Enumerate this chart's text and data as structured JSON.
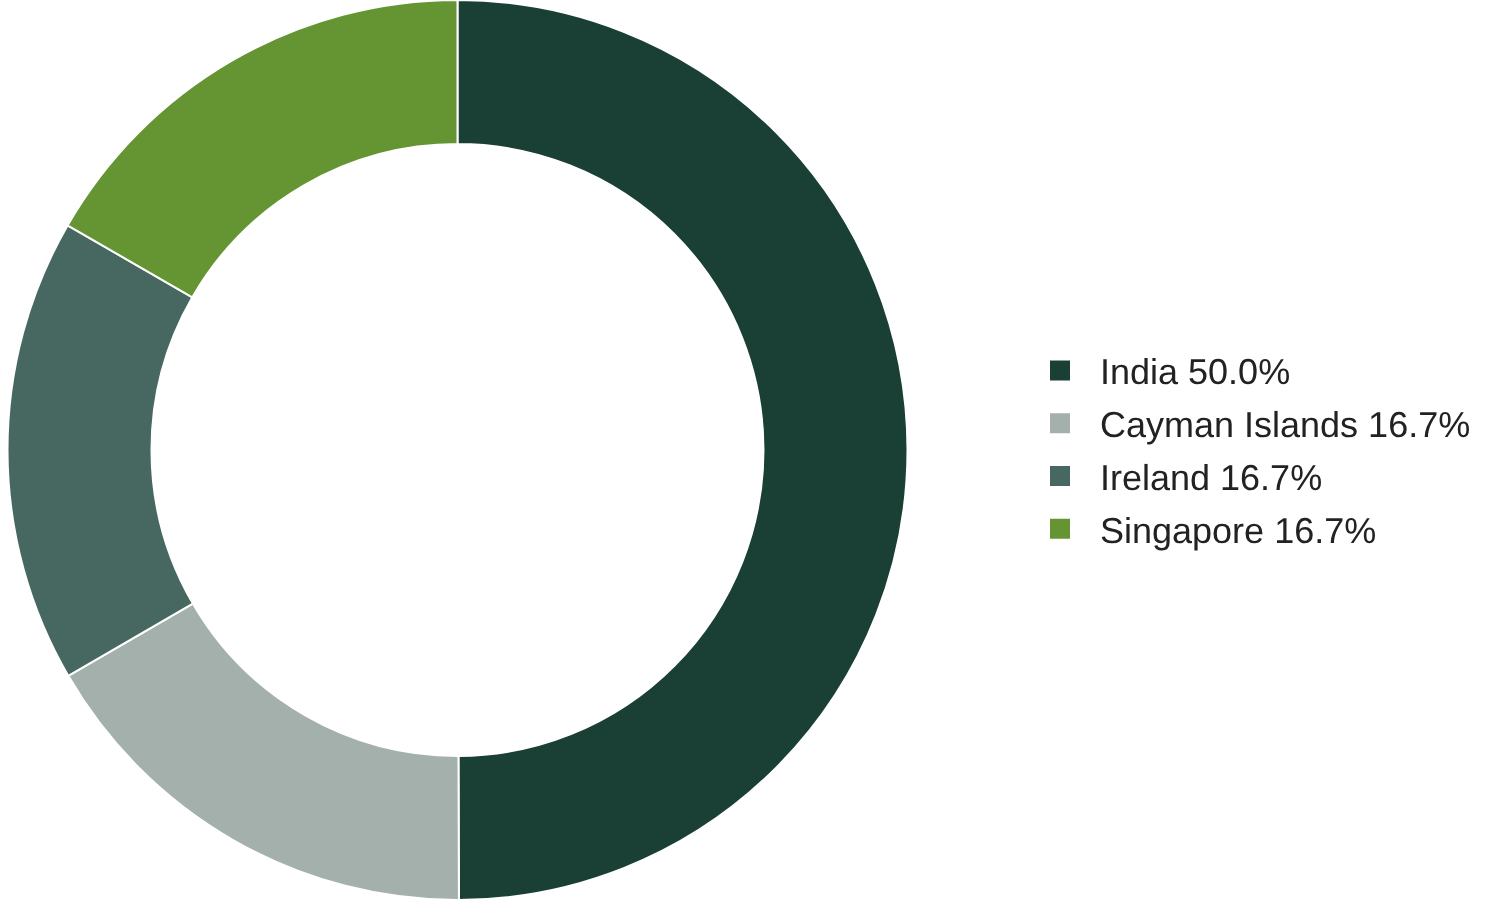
{
  "chart_data": {
    "type": "donut",
    "categories": [
      "India",
      "Cayman Islands",
      "Ireland",
      "Singapore"
    ],
    "values": [
      50.0,
      16.7,
      16.7,
      16.7
    ],
    "value_labels": [
      "50.0%",
      "16.7%",
      "16.7%",
      "16.7%"
    ],
    "colors": [
      "#1a3f35",
      "#a3b0ab",
      "#476860",
      "#659432"
    ],
    "legend": "right"
  }
}
